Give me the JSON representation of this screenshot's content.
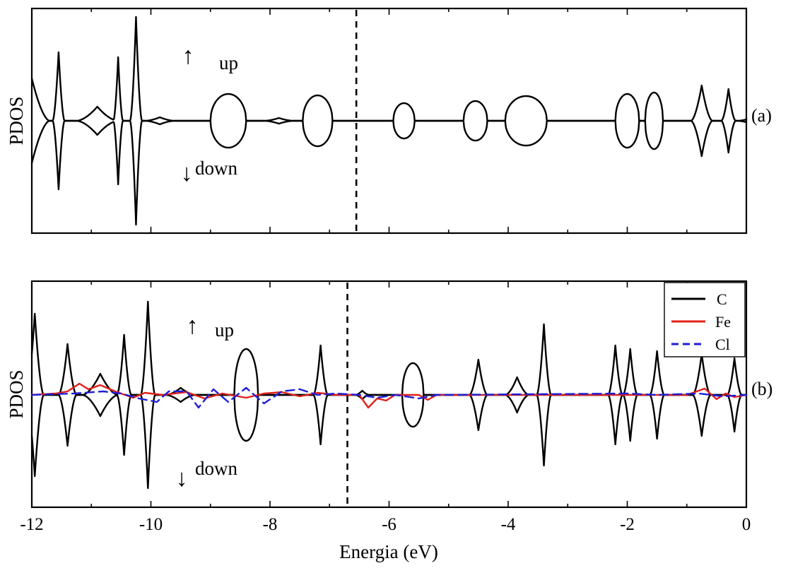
{
  "chart_data": [
    {
      "panel": "(a)",
      "type": "line",
      "ylabel": "PDOS",
      "xlim": [
        -12,
        0
      ],
      "fermi_level": -6.55,
      "annotations": {
        "up": "up",
        "down": "down",
        "up_arrow": "↑",
        "down_arrow": "↓"
      },
      "series": [
        {
          "color": "#000000",
          "style": "solid",
          "peaks": [
            [
              -12.0,
              0.6,
              0.3,
              "s"
            ],
            [
              -11.55,
              0.97,
              0.1,
              "s"
            ],
            [
              -10.9,
              0.2,
              0.35,
              "s"
            ],
            [
              -10.55,
              0.9,
              0.08,
              "s"
            ],
            [
              -10.25,
              1.47,
              0.1,
              "s"
            ],
            [
              -9.85,
              0.05,
              0.25,
              "s"
            ],
            [
              -8.7,
              0.38,
              0.3,
              "d"
            ],
            [
              -7.85,
              0.04,
              0.25,
              "s"
            ],
            [
              -7.2,
              0.36,
              0.25,
              "d"
            ],
            [
              -5.75,
              0.25,
              0.18,
              "d"
            ],
            [
              -4.55,
              0.28,
              0.2,
              "d"
            ],
            [
              -3.7,
              0.35,
              0.35,
              "d"
            ],
            [
              -2.0,
              0.38,
              0.2,
              "d"
            ],
            [
              -1.55,
              0.4,
              0.15,
              "d"
            ],
            [
              -0.75,
              0.5,
              0.18,
              "s"
            ],
            [
              -0.3,
              0.45,
              0.12,
              "s"
            ],
            [
              0.0,
              0.02,
              0.15,
              "s"
            ]
          ]
        }
      ]
    },
    {
      "panel": "(b)",
      "type": "line",
      "xlabel": "Energia (eV)",
      "ylabel": "PDOS",
      "xlim": [
        -12,
        0
      ],
      "xticks": [
        "-12",
        "-10",
        "-8",
        "-6",
        "-4",
        "-2",
        "0"
      ],
      "xtick_values": [
        -12,
        -10,
        -8,
        -6,
        -4,
        -2,
        0
      ],
      "fermi_level": -6.7,
      "annotations": {
        "up": "up",
        "down": "down",
        "up_arrow": "↑",
        "down_arrow": "↓"
      },
      "legend": {
        "placement": "top-right",
        "entries": [
          "C",
          "Fe",
          "Cl"
        ]
      },
      "series": [
        {
          "name": "C",
          "color": "#000000",
          "style": "solid",
          "peaks": [
            [
              -11.95,
              1.15,
              0.15,
              "s"
            ],
            [
              -11.4,
              0.72,
              0.15,
              "s"
            ],
            [
              -10.85,
              0.3,
              0.3,
              "s"
            ],
            [
              -10.45,
              0.85,
              0.12,
              "s"
            ],
            [
              -10.05,
              1.32,
              0.12,
              "s"
            ],
            [
              -9.5,
              0.1,
              0.25,
              "s"
            ],
            [
              -8.4,
              0.65,
              0.2,
              "d"
            ],
            [
              -7.15,
              0.7,
              0.12,
              "s"
            ],
            [
              -6.45,
              0.06,
              0.12,
              "s"
            ],
            [
              -5.6,
              0.45,
              0.18,
              "d"
            ],
            [
              -4.5,
              0.5,
              0.15,
              "s"
            ],
            [
              -3.85,
              0.25,
              0.2,
              "s"
            ],
            [
              -3.4,
              1.0,
              0.12,
              "s"
            ],
            [
              -2.2,
              0.7,
              0.12,
              "s"
            ],
            [
              -1.95,
              0.65,
              0.12,
              "s"
            ],
            [
              -1.5,
              0.62,
              0.12,
              "s"
            ],
            [
              -0.75,
              0.58,
              0.15,
              "s"
            ],
            [
              -0.2,
              0.52,
              0.12,
              "s"
            ]
          ]
        },
        {
          "name": "Fe",
          "color": "#e0211b",
          "style": "solid",
          "points": [
            [
              -12.0,
              0.0
            ],
            [
              -11.6,
              0.02
            ],
            [
              -11.4,
              0.05
            ],
            [
              -11.2,
              0.16
            ],
            [
              -11.05,
              0.08
            ],
            [
              -10.85,
              0.14
            ],
            [
              -10.6,
              0.05
            ],
            [
              -10.3,
              -0.04
            ],
            [
              -10.1,
              0.03
            ],
            [
              -9.8,
              0.0
            ],
            [
              -9.4,
              0.04
            ],
            [
              -9.1,
              -0.05
            ],
            [
              -8.8,
              0.02
            ],
            [
              -8.4,
              -0.04
            ],
            [
              -8.1,
              0.02
            ],
            [
              -7.8,
              0.04
            ],
            [
              -7.5,
              -0.02
            ],
            [
              -7.2,
              0.03
            ],
            [
              -6.9,
              0.0
            ],
            [
              -6.5,
              0.0
            ],
            [
              -6.35,
              -0.18
            ],
            [
              -6.2,
              -0.05
            ],
            [
              -6.05,
              -0.08
            ],
            [
              -5.9,
              0.0
            ],
            [
              -5.5,
              0.0
            ],
            [
              -5.35,
              -0.07
            ],
            [
              -5.2,
              0.0
            ],
            [
              -1.0,
              0.0
            ],
            [
              -0.7,
              0.09
            ],
            [
              -0.5,
              -0.06
            ],
            [
              -0.35,
              0.02
            ],
            [
              -0.2,
              -0.03
            ],
            [
              0.0,
              0.0
            ]
          ]
        },
        {
          "name": "Cl",
          "color": "#1e1ed6",
          "style": "dashed",
          "points": [
            [
              -12.0,
              0.0
            ],
            [
              -11.3,
              0.02
            ],
            [
              -10.8,
              0.05
            ],
            [
              -10.5,
              0.02
            ],
            [
              -10.2,
              -0.05
            ],
            [
              -9.9,
              -0.1
            ],
            [
              -9.7,
              0.05
            ],
            [
              -9.4,
              0.05
            ],
            [
              -9.2,
              -0.18
            ],
            [
              -8.95,
              0.08
            ],
            [
              -8.7,
              -0.1
            ],
            [
              -8.4,
              0.1
            ],
            [
              -8.1,
              -0.12
            ],
            [
              -7.8,
              0.05
            ],
            [
              -7.5,
              0.08
            ],
            [
              -7.2,
              0.0
            ],
            [
              -6.9,
              0.02
            ],
            [
              -6.5,
              0.0
            ],
            [
              -6.2,
              -0.04
            ],
            [
              -5.9,
              0.0
            ],
            [
              -5.5,
              -0.05
            ],
            [
              -5.2,
              0.0
            ],
            [
              -2.0,
              0.02
            ],
            [
              -1.5,
              0.0
            ],
            [
              -0.8,
              0.02
            ],
            [
              -0.4,
              -0.02
            ],
            [
              0.0,
              0.0
            ]
          ]
        }
      ]
    }
  ],
  "panel_labels": [
    "(a)",
    "(b)"
  ]
}
